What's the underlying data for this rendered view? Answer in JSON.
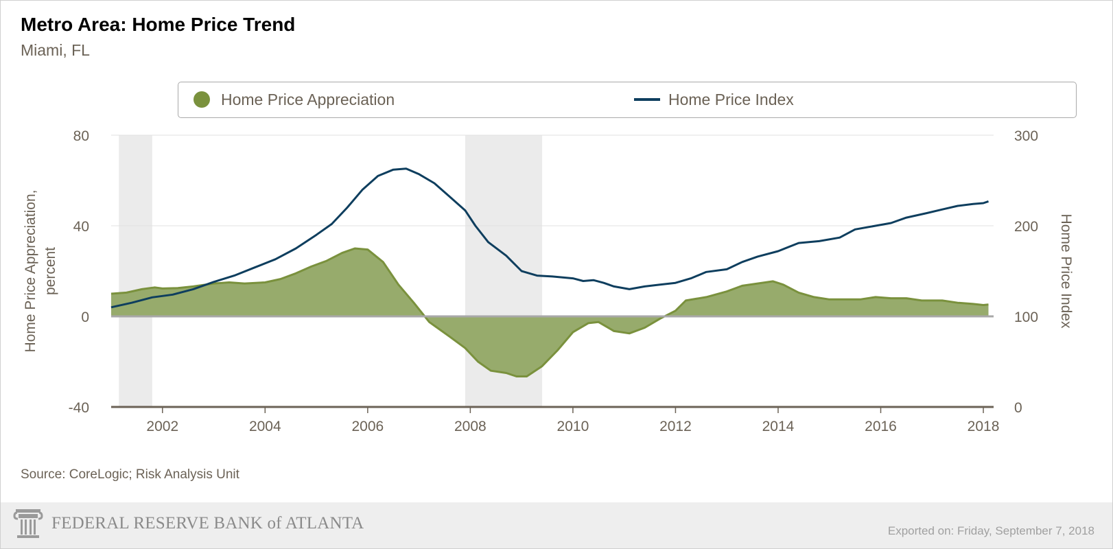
{
  "header": {
    "title": "Metro Area: Home Price Trend",
    "subtitle": "Miami, FL"
  },
  "legend": {
    "items": [
      {
        "label": "Home Price Appreciation",
        "color": "#7a913d",
        "kind": "area"
      },
      {
        "label": "Home Price Index",
        "color": "#0e3e5e",
        "kind": "line"
      }
    ]
  },
  "footer": {
    "source": "Source: CoreLogic; Risk Analysis Unit",
    "logo_text": "FEDERAL RESERVE BANK of ATLANTA",
    "exported": "Exported on: Friday, September 7, 2018"
  },
  "chart_data": {
    "type": "area",
    "xlim": [
      2001.0,
      2018.2
    ],
    "x_ticks": [
      2002,
      2004,
      2006,
      2008,
      2010,
      2012,
      2014,
      2016,
      2018
    ],
    "y_left": {
      "label": "Home Price Appreciation, percent",
      "label_lines": [
        "Home Price Appreciation,",
        "percent"
      ],
      "ylim": [
        -40,
        80
      ],
      "ticks": [
        -40,
        0,
        40,
        80
      ]
    },
    "y_right": {
      "label": "Home Price Index",
      "ylim": [
        0,
        300
      ],
      "ticks": [
        0,
        100,
        200,
        300
      ]
    },
    "grid": true,
    "recession_shading": [
      [
        2001.15,
        2001.8
      ],
      [
        2007.9,
        2009.4
      ]
    ],
    "series": [
      {
        "name": "Home Price Appreciation",
        "axis": "left",
        "type": "area",
        "color": "#7a913d",
        "fill": "#97ab6c",
        "points": [
          [
            2001.0,
            10
          ],
          [
            2001.3,
            10.5
          ],
          [
            2001.6,
            12
          ],
          [
            2001.85,
            12.8
          ],
          [
            2002.0,
            12.3
          ],
          [
            2002.3,
            12.5
          ],
          [
            2002.6,
            13.2
          ],
          [
            2003.0,
            14.5
          ],
          [
            2003.3,
            15
          ],
          [
            2003.6,
            14.5
          ],
          [
            2004.0,
            15
          ],
          [
            2004.3,
            16.5
          ],
          [
            2004.6,
            19
          ],
          [
            2004.9,
            22
          ],
          [
            2005.2,
            24.5
          ],
          [
            2005.5,
            28
          ],
          [
            2005.75,
            30
          ],
          [
            2006.0,
            29.5
          ],
          [
            2006.3,
            24
          ],
          [
            2006.6,
            14
          ],
          [
            2006.9,
            6
          ],
          [
            2007.2,
            -2.5
          ],
          [
            2007.6,
            -9
          ],
          [
            2007.9,
            -14
          ],
          [
            2008.15,
            -20
          ],
          [
            2008.4,
            -24
          ],
          [
            2008.7,
            -25
          ],
          [
            2008.9,
            -26.5
          ],
          [
            2009.1,
            -26.5
          ],
          [
            2009.4,
            -22
          ],
          [
            2009.7,
            -15
          ],
          [
            2010.0,
            -7
          ],
          [
            2010.3,
            -3
          ],
          [
            2010.5,
            -2.5
          ],
          [
            2010.8,
            -6.5
          ],
          [
            2011.1,
            -7.5
          ],
          [
            2011.4,
            -5
          ],
          [
            2011.7,
            -1
          ],
          [
            2012.0,
            2.5
          ],
          [
            2012.2,
            7
          ],
          [
            2012.6,
            8.5
          ],
          [
            2013.0,
            11
          ],
          [
            2013.3,
            13.5
          ],
          [
            2013.6,
            14.5
          ],
          [
            2013.9,
            15.5
          ],
          [
            2014.1,
            14
          ],
          [
            2014.4,
            10.5
          ],
          [
            2014.7,
            8.5
          ],
          [
            2015.0,
            7.5
          ],
          [
            2015.3,
            7.5
          ],
          [
            2015.6,
            7.5
          ],
          [
            2015.9,
            8.5
          ],
          [
            2016.2,
            8
          ],
          [
            2016.5,
            8
          ],
          [
            2016.8,
            7
          ],
          [
            2017.2,
            7
          ],
          [
            2017.5,
            6
          ],
          [
            2017.8,
            5.5
          ],
          [
            2018.0,
            5
          ],
          [
            2018.1,
            5.2
          ]
        ]
      },
      {
        "name": "Home Price Index",
        "axis": "right",
        "type": "line",
        "color": "#0e3e5e",
        "points": [
          [
            2001.0,
            110
          ],
          [
            2001.4,
            115
          ],
          [
            2001.8,
            121
          ],
          [
            2002.2,
            124
          ],
          [
            2002.6,
            130
          ],
          [
            2003.0,
            138
          ],
          [
            2003.4,
            145
          ],
          [
            2003.8,
            154
          ],
          [
            2004.2,
            163
          ],
          [
            2004.6,
            175
          ],
          [
            2005.0,
            190
          ],
          [
            2005.3,
            202
          ],
          [
            2005.6,
            220
          ],
          [
            2005.9,
            240
          ],
          [
            2006.2,
            255
          ],
          [
            2006.5,
            262
          ],
          [
            2006.75,
            263
          ],
          [
            2007.0,
            257
          ],
          [
            2007.3,
            247
          ],
          [
            2007.6,
            232
          ],
          [
            2007.9,
            217
          ],
          [
            2008.1,
            200
          ],
          [
            2008.35,
            182
          ],
          [
            2008.7,
            167
          ],
          [
            2009.0,
            150
          ],
          [
            2009.3,
            145
          ],
          [
            2009.6,
            144
          ],
          [
            2010.0,
            142
          ],
          [
            2010.2,
            139
          ],
          [
            2010.4,
            140
          ],
          [
            2010.6,
            137
          ],
          [
            2010.8,
            133
          ],
          [
            2011.1,
            130
          ],
          [
            2011.4,
            133
          ],
          [
            2011.7,
            135
          ],
          [
            2012.0,
            137
          ],
          [
            2012.3,
            142
          ],
          [
            2012.6,
            149
          ],
          [
            2013.0,
            152
          ],
          [
            2013.3,
            160
          ],
          [
            2013.6,
            166
          ],
          [
            2014.0,
            172
          ],
          [
            2014.4,
            181
          ],
          [
            2014.8,
            183
          ],
          [
            2015.2,
            187
          ],
          [
            2015.5,
            196
          ],
          [
            2015.9,
            200
          ],
          [
            2016.2,
            203
          ],
          [
            2016.5,
            209
          ],
          [
            2016.9,
            214
          ],
          [
            2017.2,
            218
          ],
          [
            2017.5,
            222
          ],
          [
            2017.8,
            224
          ],
          [
            2018.0,
            225
          ],
          [
            2018.1,
            227
          ]
        ]
      }
    ]
  }
}
